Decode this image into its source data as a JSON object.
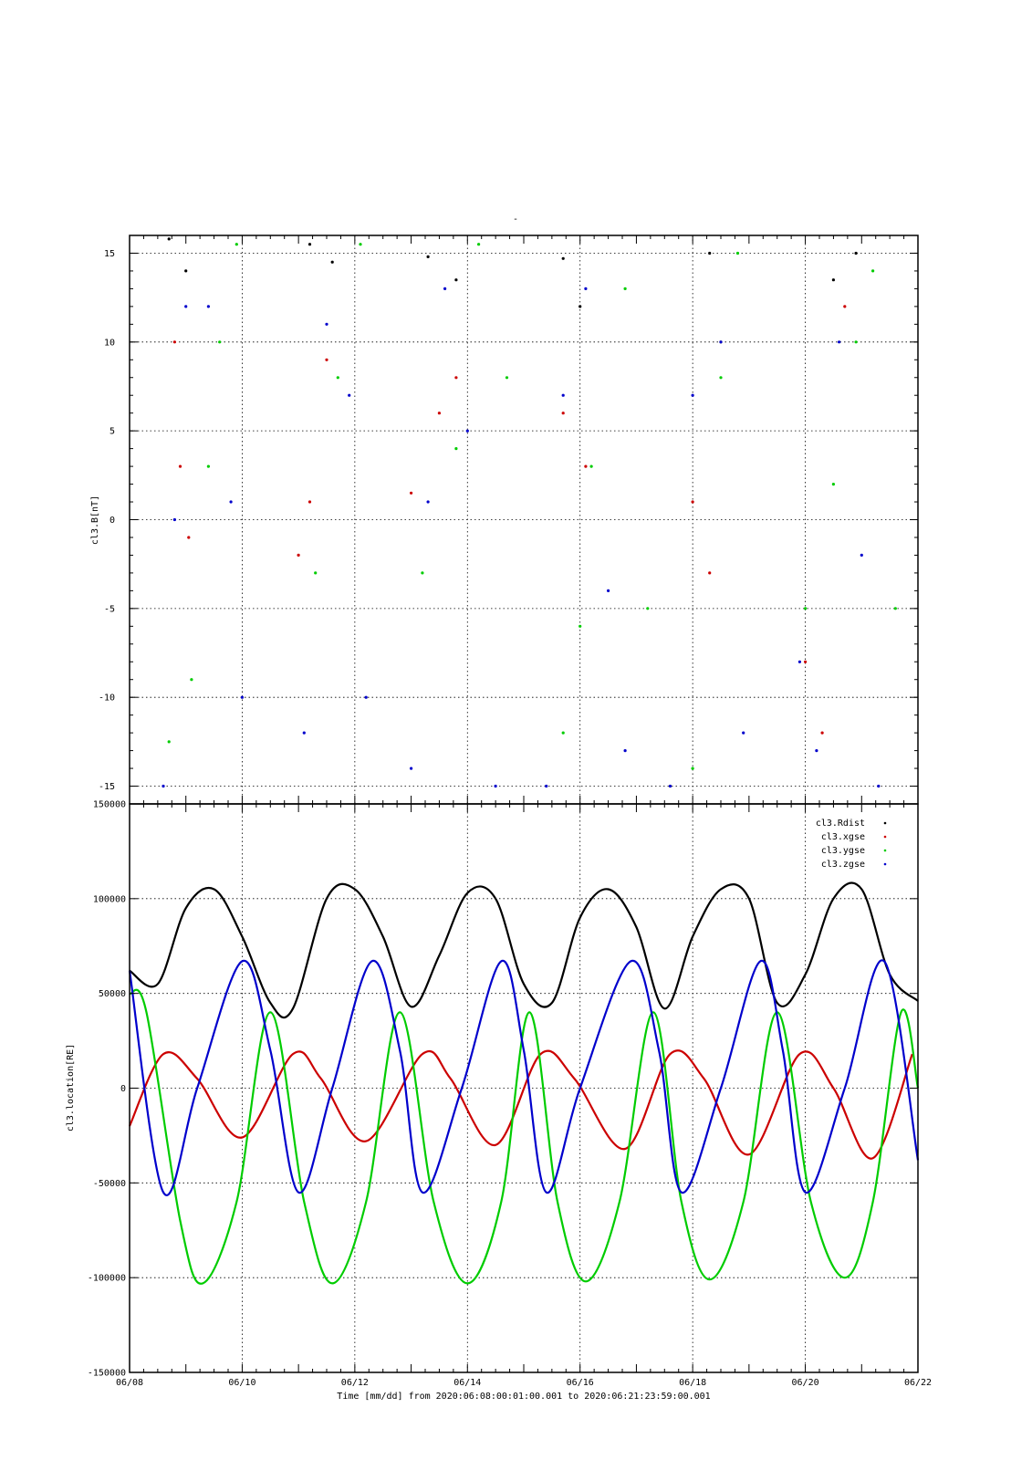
{
  "page": {
    "title": "-"
  },
  "legend": {
    "entries": [
      {
        "label": "cl3.Rdist",
        "color": "#000000"
      },
      {
        "label": "cl3.xgse",
        "color": "#cc0000"
      },
      {
        "label": "cl3.ygse",
        "color": "#00cc00"
      },
      {
        "label": "cl3.zgse",
        "color": "#0000cc"
      }
    ]
  },
  "xaxis": {
    "ticks": [
      "06/08",
      "06/10",
      "06/12",
      "06/14",
      "06/16",
      "06/18",
      "06/20",
      "06/22"
    ],
    "label": "Time [mm/dd]  from 2020:06:08:00:01:00.001  to  2020:06:21:23:59:00.001"
  },
  "chart_data": [
    {
      "type": "scatter",
      "ylabel": "cl3.B[nT]",
      "xlim": [
        "2020-06-08",
        "2020-06-22"
      ],
      "ylim": [
        -16,
        16
      ],
      "yticks": [
        -15,
        -10,
        -5,
        0,
        5,
        10,
        15
      ],
      "grid": true,
      "series": [
        {
          "color": "#000000",
          "points": [
            [
              8.7,
              15.8
            ],
            [
              9.0,
              14.0
            ],
            [
              11.2,
              15.5
            ],
            [
              11.6,
              14.5
            ],
            [
              13.3,
              14.8
            ],
            [
              13.8,
              13.5
            ],
            [
              15.7,
              14.7
            ],
            [
              16.0,
              12.0
            ],
            [
              18.3,
              15.0
            ],
            [
              18.5,
              10.0
            ],
            [
              20.5,
              13.5
            ],
            [
              20.9,
              15.0
            ]
          ]
        },
        {
          "color": "#cc0000",
          "points": [
            [
              8.8,
              10.0
            ],
            [
              8.9,
              3.0
            ],
            [
              9.05,
              -1.0
            ],
            [
              11.0,
              -2.0
            ],
            [
              11.2,
              1.0
            ],
            [
              11.5,
              9.0
            ],
            [
              13.0,
              1.5
            ],
            [
              13.5,
              6.0
            ],
            [
              13.8,
              8.0
            ],
            [
              15.7,
              6.0
            ],
            [
              16.1,
              3.0
            ],
            [
              18.0,
              1.0
            ],
            [
              18.3,
              -3.0
            ],
            [
              20.0,
              -8.0
            ],
            [
              20.3,
              -12.0
            ],
            [
              20.7,
              12.0
            ]
          ]
        },
        {
          "color": "#00cc00",
          "points": [
            [
              8.7,
              -12.5
            ],
            [
              9.1,
              -9.0
            ],
            [
              9.4,
              3.0
            ],
            [
              9.6,
              10.0
            ],
            [
              9.9,
              15.5
            ],
            [
              11.3,
              -3.0
            ],
            [
              11.7,
              8.0
            ],
            [
              12.1,
              15.5
            ],
            [
              13.2,
              -3.0
            ],
            [
              13.8,
              4.0
            ],
            [
              14.2,
              15.5
            ],
            [
              14.7,
              8.0
            ],
            [
              15.7,
              -12.0
            ],
            [
              16.0,
              -6.0
            ],
            [
              16.2,
              3.0
            ],
            [
              16.8,
              13.0
            ],
            [
              17.2,
              -5.0
            ],
            [
              18.0,
              -14.0
            ],
            [
              18.5,
              8.0
            ],
            [
              18.8,
              15.0
            ],
            [
              20.0,
              -5.0
            ],
            [
              20.5,
              2.0
            ],
            [
              20.9,
              10.0
            ],
            [
              21.2,
              14.0
            ],
            [
              21.6,
              -5.0
            ]
          ]
        },
        {
          "color": "#0000cc",
          "points": [
            [
              8.6,
              -15.0
            ],
            [
              8.8,
              0.0
            ],
            [
              9.0,
              12.0
            ],
            [
              9.4,
              12.0
            ],
            [
              9.8,
              1.0
            ],
            [
              10.0,
              -10.0
            ],
            [
              11.1,
              -12.0
            ],
            [
              11.5,
              11.0
            ],
            [
              11.9,
              7.0
            ],
            [
              12.2,
              -10.0
            ],
            [
              13.0,
              -14.0
            ],
            [
              13.3,
              1.0
            ],
            [
              13.6,
              13.0
            ],
            [
              14.0,
              5.0
            ],
            [
              14.5,
              -15.0
            ],
            [
              15.4,
              -15.0
            ],
            [
              15.7,
              7.0
            ],
            [
              16.1,
              13.0
            ],
            [
              16.5,
              -4.0
            ],
            [
              16.8,
              -13.0
            ],
            [
              17.6,
              -15.0
            ],
            [
              18.0,
              7.0
            ],
            [
              18.5,
              10.0
            ],
            [
              18.9,
              -12.0
            ],
            [
              19.9,
              -8.0
            ],
            [
              20.2,
              -13.0
            ],
            [
              20.6,
              10.0
            ],
            [
              21.0,
              -2.0
            ],
            [
              21.3,
              -15.0
            ]
          ]
        }
      ]
    },
    {
      "type": "line",
      "ylabel": "cl3.location[RE]",
      "xlim": [
        "2020-06-08",
        "2020-06-22"
      ],
      "ylim": [
        -150000,
        150000
      ],
      "yticks": [
        -150000,
        -100000,
        -50000,
        0,
        50000,
        100000,
        150000
      ],
      "grid": true,
      "series": [
        {
          "name": "cl3.Rdist",
          "color": "#000000",
          "x": [
            8.0,
            8.5,
            9.0,
            9.5,
            10.0,
            10.5,
            10.9,
            11.5,
            12.0,
            12.5,
            13.0,
            13.5,
            14.0,
            14.5,
            15.0,
            15.5,
            16.0,
            16.5,
            17.0,
            17.5,
            18.0,
            18.5,
            19.0,
            19.5,
            20.0,
            20.5,
            21.0,
            21.5,
            22.0
          ],
          "y": [
            62000,
            55000,
            95000,
            105000,
            80000,
            45000,
            42000,
            100000,
            105000,
            80000,
            43000,
            70000,
            103000,
            100000,
            55000,
            45000,
            90000,
            105000,
            85000,
            42000,
            80000,
            105000,
            100000,
            45000,
            60000,
            100000,
            105000,
            60000,
            46000
          ]
        },
        {
          "name": "cl3.xgse",
          "color": "#cc0000",
          "x": [
            8.0,
            8.6,
            9.2,
            10.0,
            10.9,
            11.4,
            12.2,
            13.2,
            13.7,
            14.5,
            15.3,
            15.9,
            16.8,
            17.6,
            18.2,
            19.0,
            19.9,
            20.5,
            21.2,
            21.9
          ],
          "y": [
            -20000,
            18000,
            5000,
            -26000,
            18000,
            5000,
            -28000,
            18000,
            5000,
            -30000,
            18000,
            5000,
            -32000,
            18000,
            5000,
            -35000,
            18000,
            0,
            -37000,
            18000
          ]
        },
        {
          "name": "cl3.ygse",
          "color": "#00cc00",
          "x": [
            8.0,
            8.3,
            8.9,
            9.3,
            9.9,
            10.5,
            11.1,
            11.6,
            12.2,
            12.8,
            13.4,
            14.0,
            14.6,
            15.1,
            15.6,
            16.1,
            16.7,
            17.3,
            17.8,
            18.3,
            18.9,
            19.5,
            20.1,
            20.7,
            21.2,
            21.7,
            22.0
          ],
          "y": [
            50000,
            40000,
            -70000,
            -103000,
            -60000,
            40000,
            -60000,
            -103000,
            -60000,
            40000,
            -60000,
            -103000,
            -60000,
            40000,
            -60000,
            -102000,
            -60000,
            40000,
            -60000,
            -101000,
            -60000,
            40000,
            -60000,
            -100000,
            -60000,
            40000,
            0
          ]
        },
        {
          "name": "cl3.zgse",
          "color": "#0000cc",
          "x": [
            8.0,
            8.6,
            9.2,
            10.0,
            10.5,
            11.0,
            11.6,
            12.3,
            12.8,
            13.2,
            13.9,
            14.6,
            15.0,
            15.4,
            16.0,
            16.9,
            17.4,
            17.8,
            18.5,
            19.2,
            19.6,
            20.0,
            20.7,
            21.4,
            22.0
          ],
          "y": [
            62000,
            -55000,
            0,
            67000,
            20000,
            -55000,
            0,
            67000,
            20000,
            -55000,
            0,
            67000,
            20000,
            -55000,
            0,
            67000,
            20000,
            -55000,
            0,
            67000,
            20000,
            -55000,
            0,
            67000,
            -38000
          ]
        }
      ]
    }
  ]
}
